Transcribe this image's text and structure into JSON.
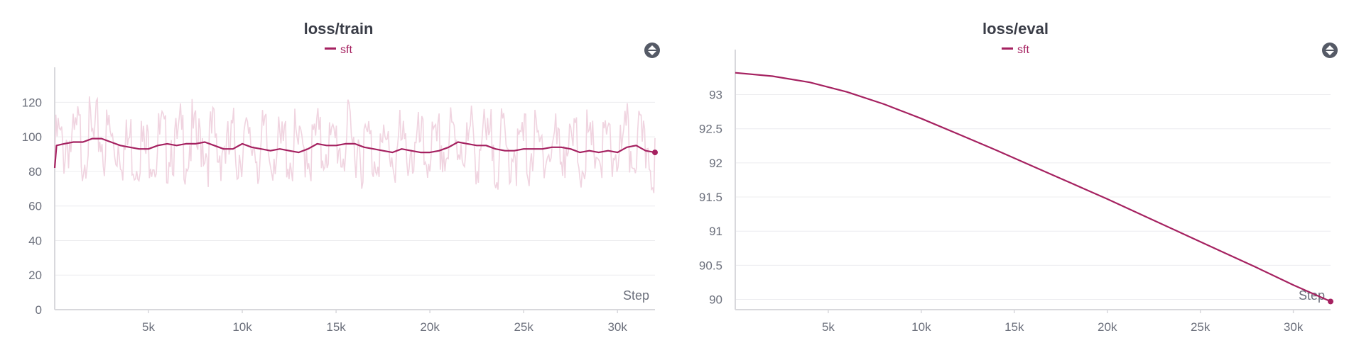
{
  "theme": {
    "series_color": "#a52160",
    "raw_color": "#f0d4e0",
    "grid_color": "#ececef",
    "axis_color": "#d8d8dc"
  },
  "chart_data": [
    {
      "type": "line",
      "title": "loss/train",
      "xlabel": "Step",
      "ylabel": "",
      "xlim": [
        0,
        32000
      ],
      "ylim": [
        0,
        130
      ],
      "xticks": [
        5000,
        10000,
        15000,
        20000,
        25000,
        30000
      ],
      "xtick_labels": [
        "5k",
        "10k",
        "15k",
        "20k",
        "25k",
        "30k"
      ],
      "yticks": [
        0,
        20,
        40,
        60,
        80,
        100,
        120
      ],
      "ytick_labels": [
        "0",
        "20",
        "40",
        "60",
        "80",
        "100",
        "120"
      ],
      "grid": true,
      "legend": "top-center",
      "series": [
        {
          "name": "sft",
          "smoothed": true,
          "x": [
            0,
            100,
            500,
            1000,
            1500,
            2000,
            2500,
            3000,
            3500,
            4000,
            4500,
            5000,
            5500,
            6000,
            6500,
            7000,
            7500,
            8000,
            8500,
            9000,
            9500,
            10000,
            10500,
            11000,
            11500,
            12000,
            12500,
            13000,
            13500,
            14000,
            14500,
            15000,
            15500,
            16000,
            16500,
            17000,
            17500,
            18000,
            18500,
            19000,
            19500,
            20000,
            20500,
            21000,
            21500,
            22000,
            22500,
            23000,
            23500,
            24000,
            24500,
            25000,
            25500,
            26000,
            26500,
            27000,
            27500,
            28000,
            28500,
            29000,
            29500,
            30000,
            30500,
            31000,
            31500,
            32000
          ],
          "y": [
            82,
            95,
            96,
            97,
            97,
            99,
            99,
            97,
            95,
            94,
            93,
            93,
            95,
            96,
            95,
            96,
            96,
            97,
            95,
            93,
            93,
            96,
            94,
            93,
            92,
            93,
            92,
            91,
            93,
            96,
            95,
            95,
            96,
            96,
            94,
            93,
            92,
            91,
            93,
            92,
            91,
            91,
            92,
            94,
            97,
            96,
            95,
            95,
            93,
            92,
            92,
            93,
            93,
            93,
            94,
            94,
            93,
            91,
            92,
            91,
            92,
            91,
            94,
            95,
            92,
            91
          ]
        }
      ]
    },
    {
      "type": "line",
      "title": "loss/eval",
      "xlabel": "Step",
      "ylabel": "",
      "xlim": [
        0,
        32000
      ],
      "ylim": [
        89.85,
        93.4
      ],
      "xticks": [
        5000,
        10000,
        15000,
        20000,
        25000,
        30000
      ],
      "xtick_labels": [
        "5k",
        "10k",
        "15k",
        "20k",
        "25k",
        "30k"
      ],
      "yticks": [
        90,
        90.5,
        91,
        91.5,
        92,
        92.5,
        93
      ],
      "ytick_labels": [
        "90",
        "90.5",
        "91",
        "91.5",
        "92",
        "92.5",
        "93"
      ],
      "grid": true,
      "legend": "top-center",
      "series": [
        {
          "name": "sft",
          "smoothed": false,
          "x": [
            0,
            2000,
            4000,
            6000,
            8000,
            10000,
            12000,
            14000,
            16000,
            18000,
            20000,
            22000,
            24000,
            26000,
            28000,
            30000,
            32000
          ],
          "y": [
            93.32,
            93.27,
            93.18,
            93.04,
            92.86,
            92.65,
            92.42,
            92.19,
            91.95,
            91.71,
            91.47,
            91.22,
            90.97,
            90.72,
            90.47,
            90.21,
            89.97
          ]
        }
      ]
    }
  ]
}
